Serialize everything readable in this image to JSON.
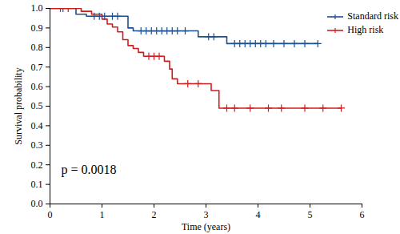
{
  "chart_data": {
    "type": "survival",
    "x_label": "Time (years)",
    "y_label": "Survival probability",
    "xlim": [
      0,
      6
    ],
    "xticks": [
      0,
      1,
      2,
      3,
      4,
      5,
      6
    ],
    "ylim": [
      0,
      1
    ],
    "yticks": [
      {
        "value": 0,
        "label": "0.0"
      },
      0.1,
      0.2,
      0.3,
      0.4,
      0.5,
      0.6,
      0.7,
      0.8,
      0.9,
      {
        "value": 1,
        "label": "1.0"
      }
    ],
    "grid": false,
    "legend": "top-right",
    "annotations": [
      {
        "text": "p = 0.0018"
      }
    ],
    "series": [
      {
        "name": "Standard risk",
        "color": "#1c4f8f",
        "marker": "plus",
        "line_style": "step",
        "x": [
          0,
          0.5,
          0.7,
          1.5,
          1.6,
          2.85,
          3.4,
          5.15
        ],
        "values": [
          1,
          0.97,
          0.96,
          0.9,
          0.885,
          0.855,
          0.82,
          0.82
        ],
        "censor_x": [
          0.25,
          0.85,
          0.95,
          1.05,
          1.2,
          1.3,
          1.75,
          1.85,
          1.95,
          2.05,
          2.15,
          2.25,
          2.35,
          2.45,
          2.6,
          3.05,
          3.15,
          3.55,
          3.65,
          3.75,
          3.85,
          3.95,
          4.05,
          4.15,
          4.3,
          4.5,
          4.7,
          4.9,
          5.15
        ],
        "censor_y": [
          1,
          0.96,
          0.96,
          0.96,
          0.96,
          0.96,
          0.885,
          0.885,
          0.885,
          0.885,
          0.885,
          0.885,
          0.885,
          0.885,
          0.885,
          0.855,
          0.855,
          0.82,
          0.82,
          0.82,
          0.82,
          0.82,
          0.82,
          0.82,
          0.82,
          0.82,
          0.82,
          0.82,
          0.82
        ]
      },
      {
        "name": "High risk",
        "color": "#d01c1f",
        "marker": "plus",
        "line_style": "step",
        "x": [
          0,
          0.6,
          0.8,
          1.0,
          1.1,
          1.2,
          1.3,
          1.4,
          1.5,
          1.6,
          1.7,
          1.8,
          2.2,
          2.3,
          2.35,
          2.45,
          3.1,
          3.25,
          5.6
        ],
        "values": [
          1,
          0.985,
          0.97,
          0.945,
          0.92,
          0.905,
          0.88,
          0.84,
          0.81,
          0.795,
          0.775,
          0.755,
          0.73,
          0.69,
          0.64,
          0.615,
          0.58,
          0.49,
          0.49
        ],
        "censor_x": [
          0.2,
          0.35,
          1.9,
          2.0,
          2.1,
          2.65,
          2.85,
          3.4,
          3.55,
          3.85,
          4.2,
          4.45,
          4.9,
          5.25,
          5.6
        ],
        "censor_y": [
          1,
          1,
          0.755,
          0.755,
          0.755,
          0.615,
          0.615,
          0.49,
          0.49,
          0.49,
          0.49,
          0.49,
          0.49,
          0.49,
          0.49
        ]
      }
    ]
  }
}
